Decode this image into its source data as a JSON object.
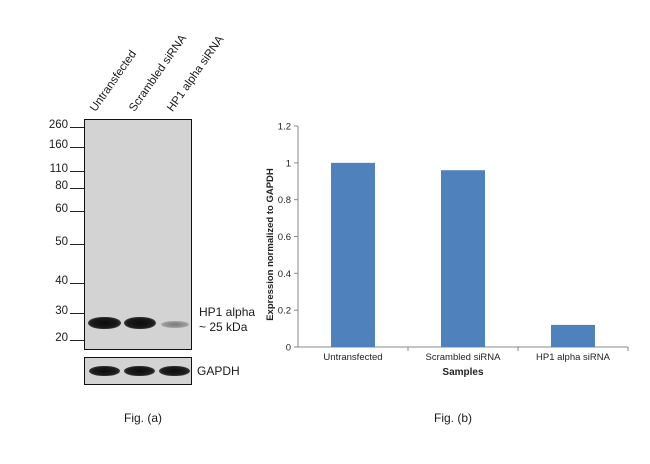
{
  "fig_a": {
    "lanes": [
      "Untransfected",
      "Scrambled siRNA",
      "HP1 alpha siRNA"
    ],
    "mw_markers": [
      "260",
      "160",
      "110",
      "80",
      "60",
      "50",
      "40",
      "30",
      "20"
    ],
    "target_label_line1": "HP1 alpha",
    "target_label_line2": "~ 25 kDa",
    "loading_control": "GAPDH",
    "band_intensity": [
      1.0,
      1.0,
      0.35
    ],
    "caption": "Fig. (a)"
  },
  "fig_b": {
    "caption": "Fig. (b)",
    "chart_data": {
      "type": "bar",
      "categories": [
        "Untransfected",
        "Scrambled siRNA",
        "HP1 alpha siRNA"
      ],
      "values": [
        1.0,
        0.96,
        0.12
      ],
      "xlabel": "Samples",
      "ylabel": "Expression normalized to GAPDH",
      "ylim": [
        0,
        1.2
      ],
      "yticks": [
        "0",
        "0.2",
        "0.4",
        "0.6",
        "0.8",
        "1",
        "1.2"
      ],
      "bar_color": "#4f81bd",
      "grid": false
    }
  }
}
